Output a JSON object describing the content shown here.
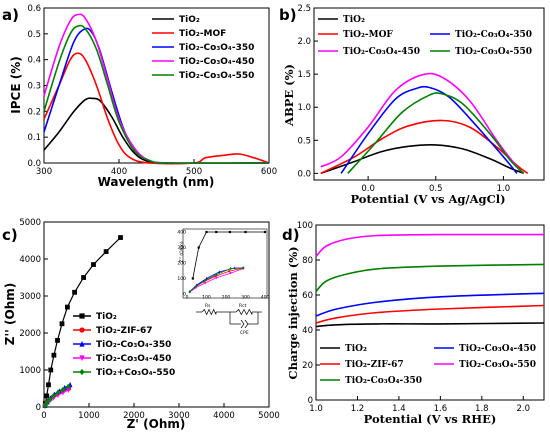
{
  "chart_data": [
    {
      "panel": "a)",
      "type": "line",
      "xlabel": "Wavelength (nm)",
      "ylabel": "IPCE (%)",
      "xlim": [
        300,
        600
      ],
      "ylim": [
        0,
        0.6
      ],
      "xticks": [
        300,
        400,
        500,
        600
      ],
      "yticks": [
        0.0,
        0.1,
        0.2,
        0.3,
        0.4,
        0.5,
        0.6
      ],
      "legend_position": "top-right",
      "series": [
        {
          "name": "TiO₂",
          "color": "#000000",
          "points": [
            [
              300,
              0.05
            ],
            [
              320,
              0.12
            ],
            [
              340,
              0.2
            ],
            [
              355,
              0.245
            ],
            [
              365,
              0.25
            ],
            [
              375,
              0.24
            ],
            [
              390,
              0.18
            ],
            [
              405,
              0.1
            ],
            [
              420,
              0.04
            ],
            [
              435,
              0.01
            ],
            [
              460,
              0.0
            ],
            [
              600,
              0.0
            ]
          ]
        },
        {
          "name": "TiO₂-MOF",
          "color": "#ff0000",
          "points": [
            [
              300,
              0.17
            ],
            [
              320,
              0.3
            ],
            [
              335,
              0.4
            ],
            [
              345,
              0.425
            ],
            [
              355,
              0.4
            ],
            [
              370,
              0.3
            ],
            [
              385,
              0.17
            ],
            [
              400,
              0.07
            ],
            [
              415,
              0.02
            ],
            [
              440,
              0.0
            ],
            [
              500,
              0.0
            ],
            [
              515,
              0.02
            ],
            [
              540,
              0.03
            ],
            [
              560,
              0.035
            ],
            [
              580,
              0.02
            ],
            [
              600,
              0.0
            ]
          ]
        },
        {
          "name": "TiO₂-Co₃O₄-350",
          "color": "#0000ff",
          "points": [
            [
              300,
              0.12
            ],
            [
              320,
              0.3
            ],
            [
              340,
              0.47
            ],
            [
              355,
              0.52
            ],
            [
              365,
              0.5
            ],
            [
              375,
              0.43
            ],
            [
              390,
              0.28
            ],
            [
              405,
              0.14
            ],
            [
              420,
              0.05
            ],
            [
              440,
              0.01
            ],
            [
              470,
              0.0
            ],
            [
              600,
              0.0
            ]
          ]
        },
        {
          "name": "TiO₂-Co₃O₄-450",
          "color": "#ff00ff",
          "points": [
            [
              300,
              0.26
            ],
            [
              320,
              0.45
            ],
            [
              335,
              0.55
            ],
            [
              345,
              0.575
            ],
            [
              355,
              0.56
            ],
            [
              370,
              0.47
            ],
            [
              385,
              0.32
            ],
            [
              400,
              0.17
            ],
            [
              420,
              0.06
            ],
            [
              440,
              0.01
            ],
            [
              470,
              0.0
            ],
            [
              600,
              0.0
            ]
          ]
        },
        {
          "name": "TiO₂-Co₃O₄-550",
          "color": "#008000",
          "points": [
            [
              300,
              0.2
            ],
            [
              320,
              0.39
            ],
            [
              335,
              0.5
            ],
            [
              345,
              0.53
            ],
            [
              355,
              0.52
            ],
            [
              370,
              0.44
            ],
            [
              385,
              0.3
            ],
            [
              400,
              0.16
            ],
            [
              420,
              0.05
            ],
            [
              440,
              0.01
            ],
            [
              470,
              0.0
            ],
            [
              600,
              0.0
            ]
          ]
        }
      ]
    },
    {
      "panel": "b)",
      "type": "line",
      "xlabel": "Potential (V vs Ag/AgCl)",
      "ylabel": "ABPE (%)",
      "xlim": [
        -0.4,
        1.3
      ],
      "ylim": [
        -0.1,
        2.5
      ],
      "xticks": [
        0.0,
        0.5,
        1.0
      ],
      "yticks": [
        0.0,
        0.5,
        1.0,
        1.5,
        2.0,
        2.5
      ],
      "legend_position": "top",
      "series": [
        {
          "name": "TiO₂",
          "color": "#000000",
          "points": [
            [
              -0.35,
              0.0
            ],
            [
              -0.1,
              0.18
            ],
            [
              0.1,
              0.33
            ],
            [
              0.3,
              0.41
            ],
            [
              0.5,
              0.43
            ],
            [
              0.7,
              0.37
            ],
            [
              0.9,
              0.22
            ],
            [
              1.05,
              0.08
            ],
            [
              1.15,
              0.0
            ]
          ]
        },
        {
          "name": "TiO₂-MOF",
          "color": "#ff0000",
          "points": [
            [
              -0.35,
              0.0
            ],
            [
              -0.1,
              0.25
            ],
            [
              0.1,
              0.52
            ],
            [
              0.3,
              0.72
            ],
            [
              0.55,
              0.8
            ],
            [
              0.75,
              0.7
            ],
            [
              0.95,
              0.4
            ],
            [
              1.1,
              0.12
            ],
            [
              1.18,
              0.0
            ]
          ]
        },
        {
          "name": "TiO₂-Co₃O₄-350",
          "color": "#0000ff",
          "points": [
            [
              -0.2,
              0.0
            ],
            [
              0.0,
              0.6
            ],
            [
              0.2,
              1.12
            ],
            [
              0.35,
              1.28
            ],
            [
              0.45,
              1.3
            ],
            [
              0.6,
              1.15
            ],
            [
              0.8,
              0.72
            ],
            [
              1.0,
              0.25
            ],
            [
              1.1,
              0.0
            ]
          ]
        },
        {
          "name": "TiO₂-Co₃O₄-450",
          "color": "#ff00ff",
          "points": [
            [
              -0.35,
              0.1
            ],
            [
              -0.2,
              0.25
            ],
            [
              0.0,
              0.7
            ],
            [
              0.2,
              1.25
            ],
            [
              0.4,
              1.49
            ],
            [
              0.55,
              1.45
            ],
            [
              0.75,
              1.1
            ],
            [
              0.95,
              0.5
            ],
            [
              1.1,
              0.1
            ],
            [
              1.15,
              0.0
            ]
          ]
        },
        {
          "name": "TiO₂-Co₃O₄-550",
          "color": "#008000",
          "points": [
            [
              -0.15,
              0.0
            ],
            [
              0.05,
              0.45
            ],
            [
              0.25,
              0.92
            ],
            [
              0.45,
              1.18
            ],
            [
              0.55,
              1.2
            ],
            [
              0.7,
              1.05
            ],
            [
              0.9,
              0.6
            ],
            [
              1.05,
              0.2
            ],
            [
              1.15,
              0.0
            ]
          ]
        }
      ]
    },
    {
      "panel": "c)",
      "type": "scatter",
      "xlabel": "Z' (Ohm)",
      "ylabel": "Z'' (Ohm)",
      "xlim": [
        0,
        5000
      ],
      "ylim": [
        0,
        5000
      ],
      "xticks": [
        0,
        1000,
        2000,
        3000,
        4000,
        5000
      ],
      "yticks": [
        0,
        1000,
        2000,
        3000,
        4000,
        5000
      ],
      "legend_position": "left",
      "circuit_labels": [
        "Rs",
        "Rct",
        "CPE"
      ],
      "inset_xticks": [
        "0",
        "100",
        "200",
        "300",
        "400"
      ],
      "inset_yticks": [
        "0",
        "100",
        "200",
        "300",
        "400"
      ],
      "inset_ylabel": "Z'' (Ohm)",
      "series": [
        {
          "name": "TiO₂",
          "color": "#000000",
          "marker": "square",
          "points": [
            [
              30,
              100
            ],
            [
              60,
              300
            ],
            [
              100,
              600
            ],
            [
              150,
              1000
            ],
            [
              220,
              1400
            ],
            [
              300,
              1800
            ],
            [
              400,
              2250
            ],
            [
              520,
              2700
            ],
            [
              680,
              3100
            ],
            [
              880,
              3500
            ],
            [
              1100,
              3850
            ],
            [
              1380,
              4200
            ],
            [
              1700,
              4580
            ]
          ]
        },
        {
          "name": "TiO₂-ZIF-67",
          "color": "#ff0000",
          "marker": "circle",
          "points": [
            [
              20,
              30
            ],
            [
              60,
              110
            ],
            [
              120,
              190
            ],
            [
              200,
              270
            ],
            [
              300,
              350
            ],
            [
              420,
              430
            ],
            [
              550,
              500
            ]
          ]
        },
        {
          "name": "TiO₂-Co₃O₄-350",
          "color": "#0000ff",
          "marker": "triangle",
          "points": [
            [
              20,
              40
            ],
            [
              70,
              140
            ],
            [
              140,
              240
            ],
            [
              230,
              340
            ],
            [
              340,
              430
            ],
            [
              460,
              520
            ],
            [
              580,
              600
            ]
          ]
        },
        {
          "name": "TiO₂-Co₃O₄-450",
          "color": "#ff00ff",
          "marker": "triangle-down",
          "points": [
            [
              20,
              30
            ],
            [
              65,
              100
            ],
            [
              130,
              170
            ],
            [
              210,
              250
            ],
            [
              310,
              320
            ],
            [
              420,
              390
            ],
            [
              540,
              460
            ]
          ]
        },
        {
          "name": "TiO₂+Co₃O₄-550",
          "color": "#008000",
          "marker": "diamond",
          "points": [
            [
              20,
              35
            ],
            [
              65,
              120
            ],
            [
              130,
              210
            ],
            [
              210,
              300
            ],
            [
              310,
              390
            ],
            [
              420,
              470
            ],
            [
              540,
              550
            ]
          ]
        }
      ]
    },
    {
      "panel": "d)",
      "type": "line",
      "xlabel": "Potential (V vs RHE)",
      "ylabel": "Charge injection (%)",
      "xlim": [
        1.0,
        2.1
      ],
      "ylim": [
        0,
        100
      ],
      "xticks": [
        1.0,
        1.2,
        1.4,
        1.6,
        1.8,
        2.0
      ],
      "yticks": [
        0,
        20,
        40,
        60,
        80,
        100
      ],
      "legend_position": "bottom",
      "series": [
        {
          "name": "TiO₂",
          "color": "#000000",
          "points": [
            [
              1.0,
              42
            ],
            [
              1.1,
              43
            ],
            [
              1.3,
              43.5
            ],
            [
              1.6,
              43.5
            ],
            [
              2.1,
              44
            ]
          ]
        },
        {
          "name": "TiO₂-ZIF-67",
          "color": "#ff0000",
          "points": [
            [
              1.0,
              44
            ],
            [
              1.1,
              47
            ],
            [
              1.3,
              50
            ],
            [
              1.6,
              52
            ],
            [
              2.1,
              54
            ]
          ]
        },
        {
          "name": "TiO₂-Co₃O₄-350",
          "color": "#008000",
          "points": [
            [
              1.0,
              62
            ],
            [
              1.05,
              68
            ],
            [
              1.15,
              72
            ],
            [
              1.3,
              75
            ],
            [
              1.6,
              76.5
            ],
            [
              2.1,
              77.5
            ]
          ]
        },
        {
          "name": "TiO₂-Co₃O₄-450",
          "color": "#0000ff",
          "points": [
            [
              1.0,
              48
            ],
            [
              1.1,
              52
            ],
            [
              1.3,
              56
            ],
            [
              1.6,
              59
            ],
            [
              2.1,
              61
            ]
          ]
        },
        {
          "name": "TiO₂-Co₃O₄-550",
          "color": "#ff00ff",
          "points": [
            [
              1.0,
              82
            ],
            [
              1.05,
              88
            ],
            [
              1.15,
              92
            ],
            [
              1.3,
              94
            ],
            [
              1.6,
              94.5
            ],
            [
              2.1,
              94.5
            ]
          ]
        }
      ]
    }
  ]
}
